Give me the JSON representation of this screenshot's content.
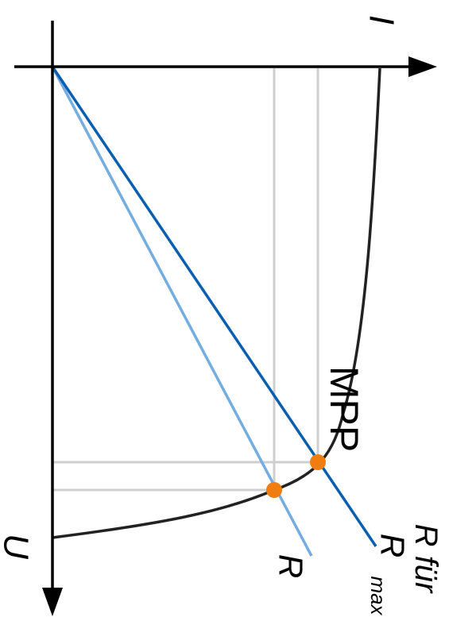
{
  "labels": {
    "current_axis": "I",
    "voltage_axis": "U",
    "mpp": "MPP",
    "load_line": "R",
    "max_line_line1": "R für",
    "max_line_r": "R",
    "max_line_subscript": "max"
  },
  "colors": {
    "axis": "#000000",
    "curve": "#222222",
    "grid": "#cfcfcf",
    "load_line": "#74ade0",
    "max_line": "#0a5fb0",
    "points": "#f07d10"
  }
}
